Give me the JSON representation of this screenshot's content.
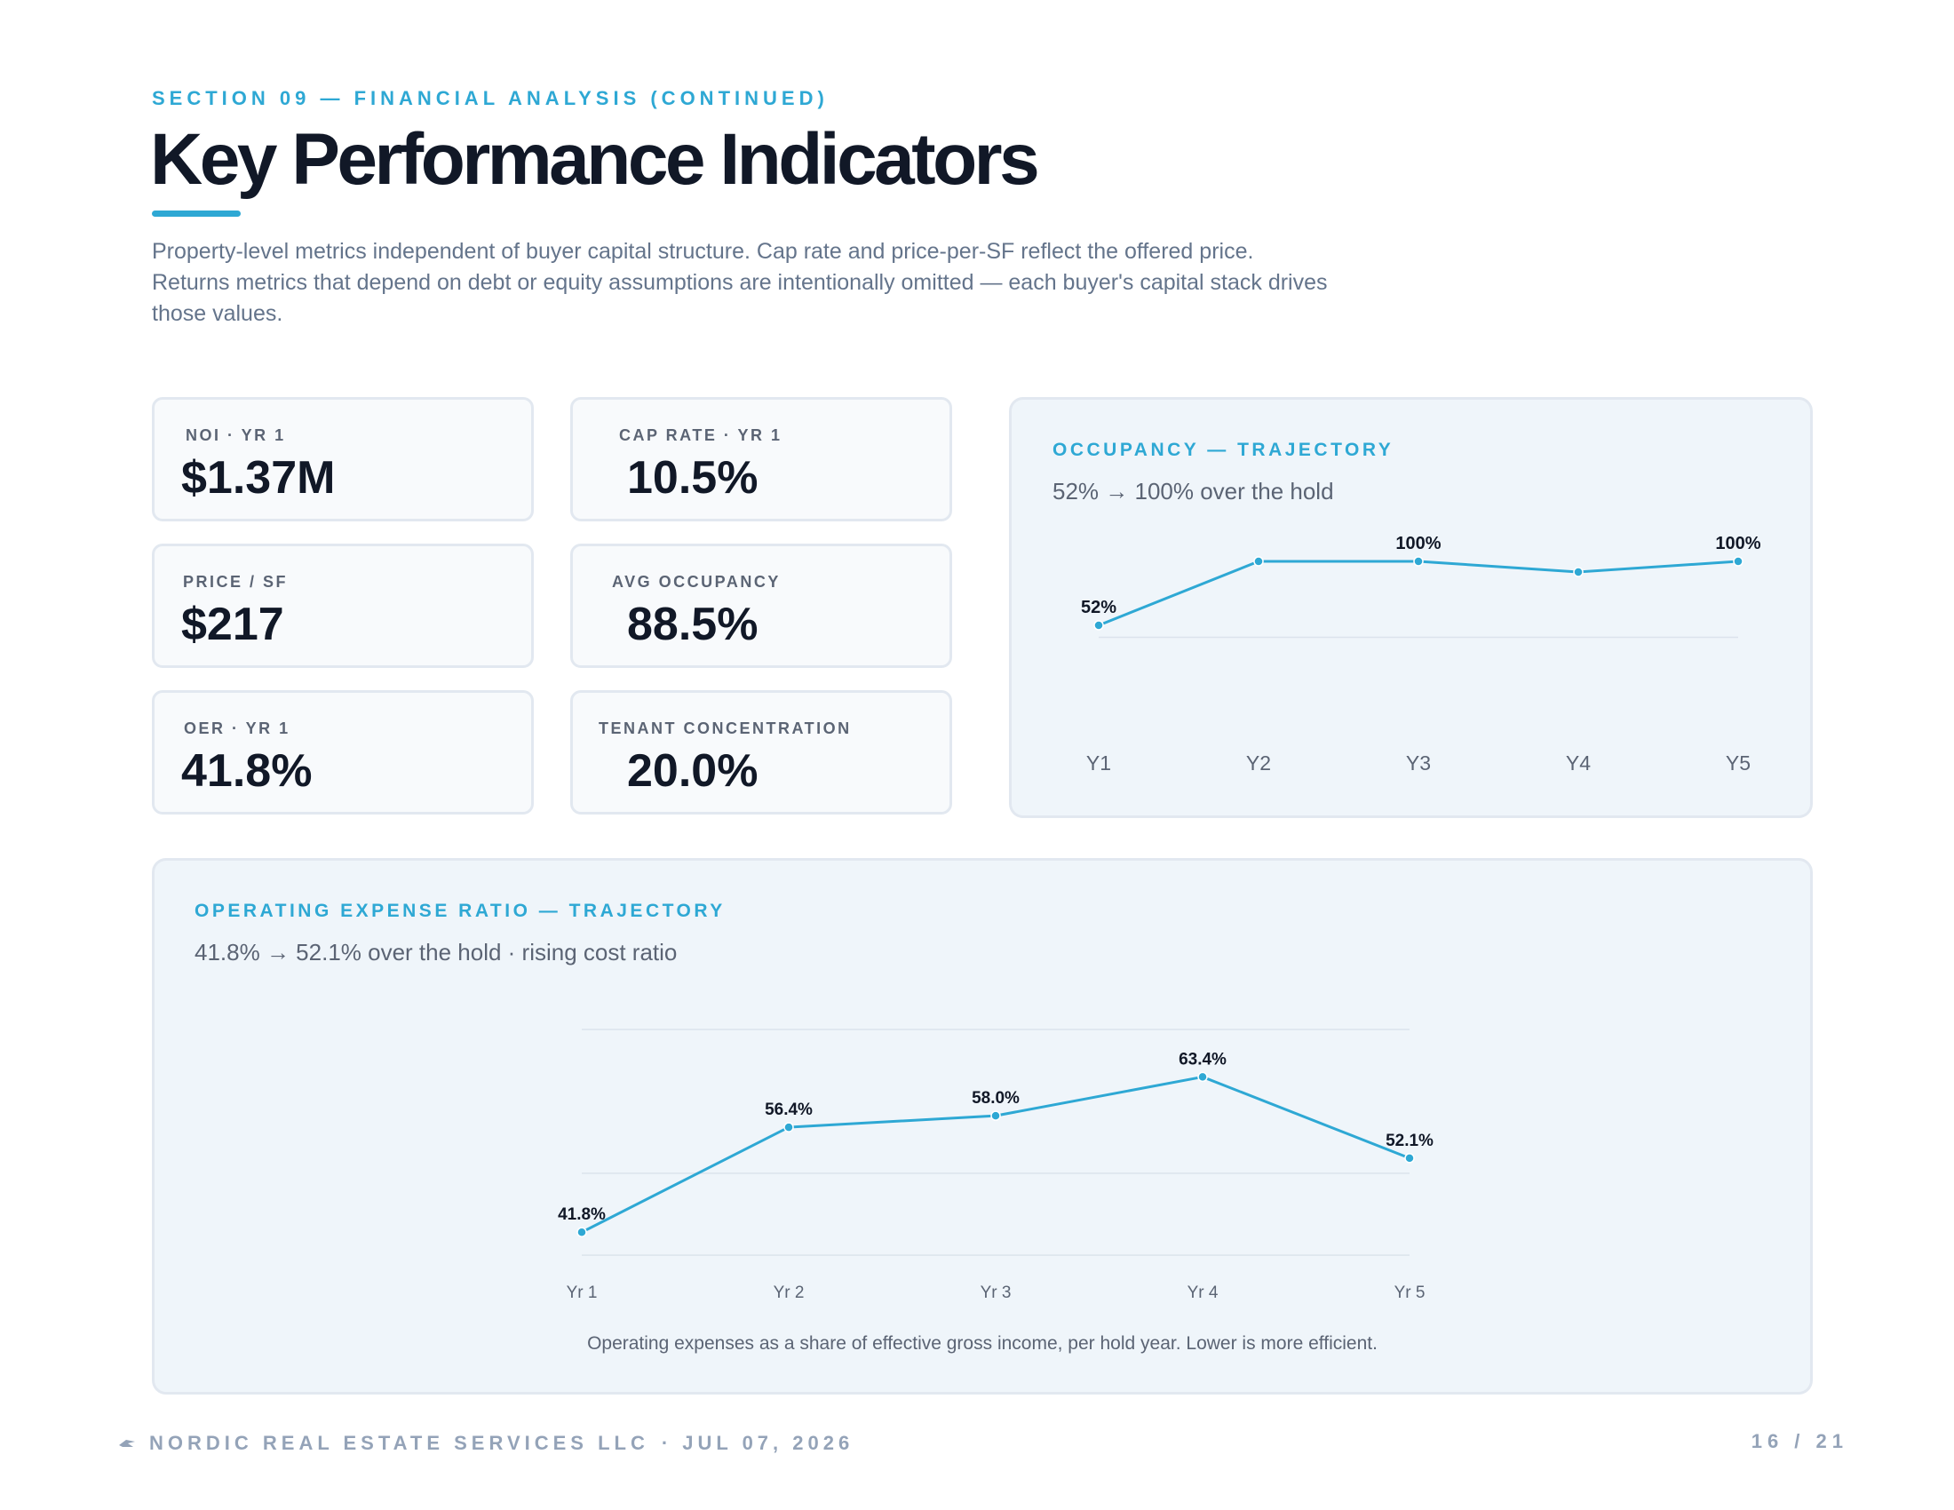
{
  "header": {
    "eyebrow": "SECTION 09 — FINANCIAL ANALYSIS (CONTINUED)",
    "title": "Key Performance Indicators",
    "intro": "Property-level metrics independent of buyer capital structure. Cap rate and price-per-SF reflect the offered price. Returns metrics that depend on debt or equity assumptions are intentionally omitted — each buyer's capital stack drives those values."
  },
  "kpis": [
    {
      "label": "NOI · YR 1",
      "value": "$1.37M"
    },
    {
      "label": "CAP RATE · YR 1",
      "value": "10.5%"
    },
    {
      "label": "PRICE / SF",
      "value": "$217"
    },
    {
      "label": "AVG OCCUPANCY",
      "value": "88.5%"
    },
    {
      "label": "OER · YR 1",
      "value": "41.8%"
    },
    {
      "label": "TENANT CONCENTRATION",
      "value": "20.0%"
    }
  ],
  "occupancy_panel": {
    "eyebrow": "OCCUPANCY — TRAJECTORY",
    "subtitle": "52% → 100% over the hold"
  },
  "oer_panel": {
    "eyebrow": "OPERATING EXPENSE RATIO — TRAJECTORY",
    "subtitle": "41.8% → 52.1% over the hold  ·  rising cost ratio",
    "note": "Operating expenses as a share of effective gross income, per hold year. Lower is more efficient."
  },
  "chart_data": [
    {
      "type": "line",
      "title": "OCCUPANCY — TRAJECTORY",
      "categories": [
        "Y1",
        "Y2",
        "Y3",
        "Y4",
        "Y5"
      ],
      "values": [
        52,
        100,
        100,
        92,
        100
      ],
      "data_labels": [
        "52%",
        "",
        "100%",
        "",
        "100%"
      ],
      "ylim": [
        40,
        100
      ],
      "grid": true,
      "color": "#2ea8d4"
    },
    {
      "type": "line",
      "title": "OPERATING EXPENSE RATIO — TRAJECTORY",
      "categories": [
        "Yr 1",
        "Yr 2",
        "Yr 3",
        "Yr 4",
        "Yr 5"
      ],
      "values": [
        41.8,
        56.4,
        58.0,
        63.4,
        52.1
      ],
      "data_labels": [
        "41.8%",
        "56.4%",
        "58.0%",
        "63.4%",
        "52.1%"
      ],
      "ylim": [
        38,
        70
      ],
      "grid": true,
      "color": "#2ea8d4"
    }
  ],
  "footer": {
    "company": "NORDIC REAL ESTATE SERVICES LLC",
    "date": "· JUL 07, 2026",
    "page": "16  /  21"
  },
  "colors": {
    "accent": "#2ea8d4",
    "title": "#111827",
    "muted": "#64748b",
    "panel_bg": "#eff5fa",
    "card_bg": "#f8fafc"
  }
}
